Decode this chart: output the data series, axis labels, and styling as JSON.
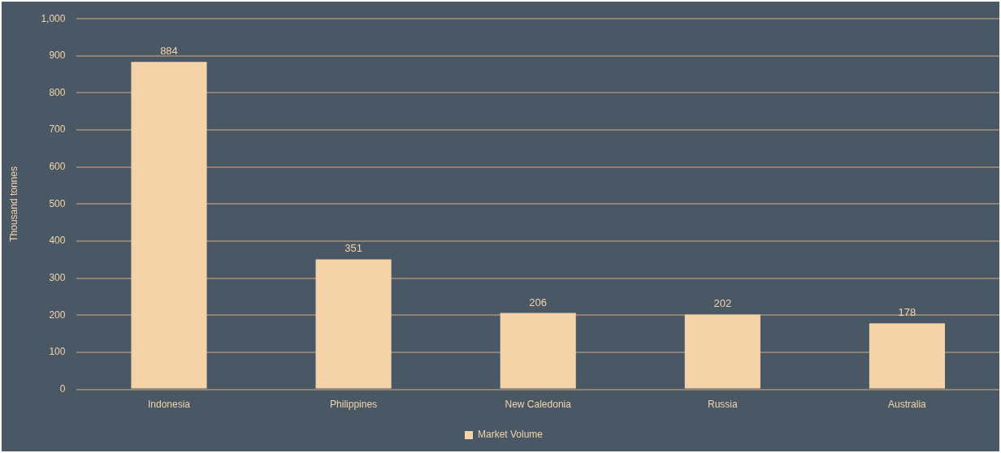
{
  "chart_data": {
    "type": "bar",
    "ylabel": "Thousand tonnes",
    "categories": [
      "Indonesia",
      "Philippines",
      "New Caledonia",
      "Russia",
      "Australia"
    ],
    "series": [
      {
        "name": "Market Volume",
        "color": "#f5d3a8",
        "values": [
          884,
          351,
          206,
          202,
          178
        ]
      }
    ],
    "ylim": [
      0,
      1000
    ],
    "yticks": [
      0,
      100,
      200,
      300,
      400,
      500,
      600,
      700,
      800,
      900,
      {
        "value": 1000,
        "label": "1,000"
      }
    ],
    "grid": "y",
    "legend": "bottom",
    "data_labels": true
  }
}
